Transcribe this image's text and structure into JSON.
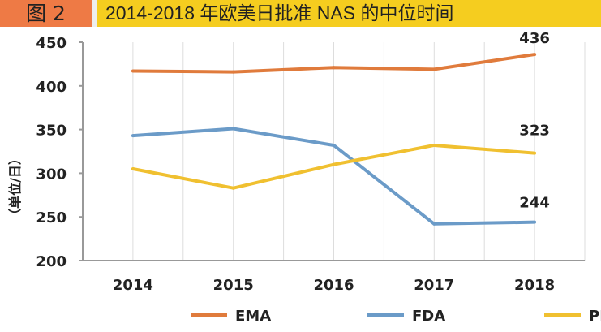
{
  "figure_label": "图 2",
  "chart_data": {
    "type": "line",
    "title": "2014-2018 年欧美日批准 NAS 的中位时间",
    "ylabel": "（单位/日）",
    "xlabel": "",
    "categories": [
      "2014",
      "2015",
      "2016",
      "2017",
      "2018"
    ],
    "ylim": [
      200,
      450
    ],
    "yticks": [
      "200",
      "250",
      "300",
      "350",
      "400",
      "450"
    ],
    "grid": true,
    "legend": "bottom",
    "series": [
      {
        "name": "EMA",
        "color": "#e07b3c",
        "values": [
          417,
          416,
          421,
          419,
          436
        ],
        "label": "436"
      },
      {
        "name": "FDA",
        "color": "#6b9bc8",
        "values": [
          343,
          351,
          332,
          242,
          244
        ],
        "label": "244"
      },
      {
        "name": "PMDA",
        "color": "#f0c030",
        "values": [
          305,
          283,
          310,
          332,
          323
        ],
        "label": "323"
      }
    ]
  }
}
